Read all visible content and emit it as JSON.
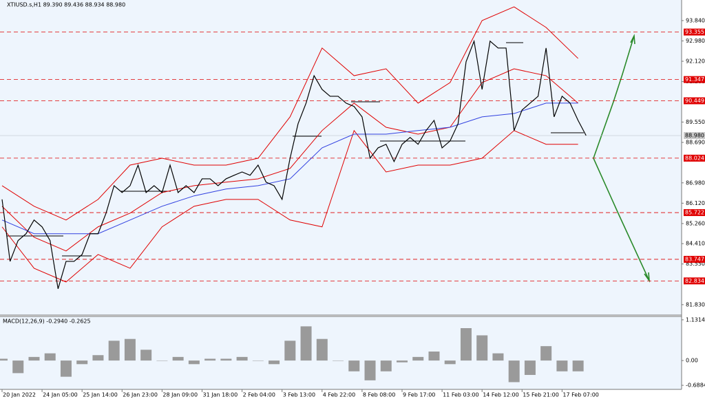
{
  "chart_data": {
    "type": "line",
    "title": "XTIUSD.s,H1  89.390 89.436 88.934 88.980",
    "categories": [
      "20 Jan 2022",
      null,
      null,
      null,
      null,
      "24 Jan 05:00",
      null,
      null,
      null,
      null,
      "25 Jan 14:00",
      null,
      null,
      null,
      null,
      "26 Jan 23:00",
      null,
      null,
      null,
      null,
      "28 Jan 09:00",
      null,
      null,
      null,
      null,
      "31 Jan 18:00",
      null,
      null,
      null,
      null,
      "2 Feb 04:00",
      null,
      null,
      null,
      null,
      "3 Feb 13:00",
      null,
      null,
      null,
      null,
      "4 Feb 22:00",
      null,
      null,
      null,
      null,
      "8 Feb 08:00",
      null,
      null,
      null,
      null,
      "9 Feb 17:00",
      null,
      null,
      null,
      null,
      "11 Feb 03:00",
      null,
      null,
      null,
      null,
      "14 Feb 12:00",
      null,
      null,
      null,
      null,
      "15 Feb 21:00",
      null,
      null,
      null,
      null,
      "17 Feb 07:00",
      null,
      null,
      null
    ],
    "series": [
      {
        "color": "#000000",
        "values": [
          86.28,
          83.66,
          84.54,
          84.83,
          85.41,
          85.12,
          84.54,
          82.5,
          83.66,
          83.66,
          83.95,
          84.83,
          84.83,
          85.7,
          86.86,
          86.57,
          86.86,
          87.73,
          86.57,
          86.86,
          86.57,
          87.73,
          86.57,
          86.86,
          86.57,
          87.15,
          87.15,
          86.86,
          87.15,
          87.3,
          87.44,
          87.3,
          87.73,
          87.01,
          86.86,
          86.28,
          88.02,
          89.48,
          90.35,
          91.51,
          90.93,
          90.64,
          90.64,
          90.35,
          90.21,
          89.77,
          88.02,
          88.46,
          88.61,
          87.88,
          88.61,
          88.9,
          88.61,
          89.19,
          89.62,
          88.46,
          88.75,
          89.48,
          92.1,
          92.97,
          90.93,
          92.97,
          92.68,
          92.68,
          89.19,
          90.06,
          90.35,
          90.64,
          92.68,
          89.77,
          90.64,
          90.35,
          89.62,
          88.98
        ]
      }
    ],
    "overlays": [
      {
        "color": "#e00000",
        "x": [
          0,
          4,
          8,
          12,
          16,
          20,
          24,
          28,
          32,
          36,
          40,
          44,
          48,
          52,
          56,
          60,
          64,
          68,
          72
        ],
        "values": [
          86.86,
          85.99,
          85.41,
          86.28,
          87.73,
          88.02,
          87.73,
          87.73,
          88.02,
          89.77,
          92.68,
          91.51,
          91.8,
          90.35,
          91.22,
          93.84,
          94.42,
          93.55,
          92.24
        ]
      },
      {
        "color": "#e00000",
        "x": [
          0,
          4,
          8,
          12,
          16,
          20,
          24,
          28,
          32,
          36,
          40,
          44,
          48,
          52,
          56,
          60,
          64,
          68,
          72
        ],
        "values": [
          85.99,
          84.68,
          84.1,
          85.12,
          85.7,
          86.57,
          86.86,
          87.01,
          87.15,
          87.59,
          89.19,
          90.35,
          89.33,
          89.04,
          89.33,
          91.22,
          91.8,
          91.51,
          90.35
        ]
      },
      {
        "color": "#e00000",
        "x": [
          0,
          4,
          8,
          12,
          16,
          20,
          24,
          28,
          32,
          36,
          40,
          44,
          48,
          52,
          56,
          60,
          64,
          68,
          72
        ],
        "values": [
          85.12,
          83.37,
          82.79,
          83.95,
          83.37,
          85.12,
          85.99,
          86.28,
          86.28,
          85.41,
          85.12,
          89.19,
          87.44,
          87.73,
          87.73,
          88.02,
          89.19,
          88.61,
          88.61
        ]
      },
      {
        "color": "#3040e0",
        "x": [
          0,
          4,
          8,
          12,
          16,
          20,
          24,
          28,
          32,
          36,
          40,
          44,
          48,
          52,
          56,
          60,
          64,
          68,
          72
        ],
        "values": [
          85.41,
          84.83,
          84.83,
          84.83,
          85.41,
          85.99,
          86.43,
          86.72,
          86.86,
          87.15,
          88.46,
          89.04,
          89.04,
          89.19,
          89.33,
          89.77,
          89.91,
          90.35,
          90.35
        ]
      }
    ],
    "ylim": [
      81.39,
      94.71
    ],
    "yticks": [
      {
        "value": 93.84,
        "label": "93.840"
      },
      {
        "value": 92.98,
        "label": "92.980"
      },
      {
        "value": 92.12,
        "label": "92.120"
      },
      {
        "value": 91.26,
        "label": "91.260"
      },
      {
        "value": 89.55,
        "label": "89.550"
      },
      {
        "value": 88.69,
        "label": "88.690"
      },
      {
        "value": 86.98,
        "label": "86.980"
      },
      {
        "value": 86.12,
        "label": "86.120"
      },
      {
        "value": 85.26,
        "label": "85.260"
      },
      {
        "value": 84.41,
        "label": "84.410"
      },
      {
        "value": 83.55,
        "label": "83.550"
      },
      {
        "value": 81.83,
        "label": "81.830"
      }
    ],
    "levels": [
      93.355,
      91.347,
      90.449,
      88.024,
      85.722,
      83.747,
      82.834
    ],
    "level_color": "#e00000",
    "current_price": {
      "value": 88.98,
      "label": "88.980"
    },
    "macd": {
      "title": "MACD(12,26,9) -0.2940 -0.2625",
      "x": [
        0,
        2,
        4,
        6,
        8,
        10,
        12,
        14,
        16,
        18,
        20,
        22,
        24,
        26,
        28,
        30,
        32,
        34,
        36,
        38,
        40,
        42,
        44,
        46,
        48,
        50,
        52,
        54,
        56,
        58,
        60,
        62,
        64,
        66,
        68,
        70,
        72
      ],
      "values": [
        0.05,
        -0.35,
        0.1,
        0.2,
        -0.45,
        -0.1,
        0.15,
        0.55,
        0.6,
        0.3,
        0.0,
        0.1,
        -0.1,
        0.05,
        0.05,
        0.1,
        0.0,
        -0.1,
        0.55,
        0.95,
        0.6,
        0.0,
        -0.3,
        -0.55,
        -0.3,
        -0.05,
        0.1,
        0.25,
        -0.1,
        0.9,
        0.7,
        0.2,
        -0.6,
        -0.4,
        0.4,
        -0.3,
        -0.3
      ],
      "color": "#9a9a9a",
      "ylim": [
        -0.801,
        1.225
      ],
      "yticks": [
        1.1314,
        {
          "value": 0,
          "label": "0.00"
        },
        -0.6884
      ]
    }
  }
}
